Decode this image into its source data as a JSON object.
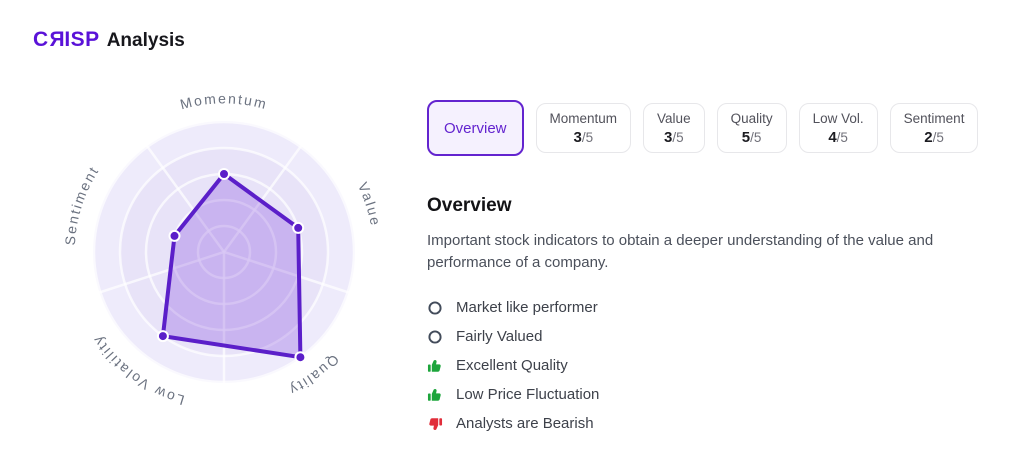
{
  "header": {
    "logo_c": "C",
    "logo_r": "R",
    "logo_rest": "ISP",
    "title": "Analysis"
  },
  "tabs": [
    {
      "id": "overview",
      "label": "Overview",
      "active": true
    },
    {
      "id": "momentum",
      "label": "Momentum",
      "score": "3",
      "max": "/5"
    },
    {
      "id": "value",
      "label": "Value",
      "score": "3",
      "max": "/5"
    },
    {
      "id": "quality",
      "label": "Quality",
      "score": "5",
      "max": "/5"
    },
    {
      "id": "low-vol",
      "label": "Low Vol.",
      "score": "4",
      "max": "/5"
    },
    {
      "id": "sentiment",
      "label": "Sentiment",
      "score": "2",
      "max": "/5"
    }
  ],
  "section": {
    "title": "Overview",
    "description": "Important stock indicators to obtain a deeper understanding of the value and performance of a company."
  },
  "indicators": [
    {
      "icon": "circle-outline-icon",
      "label": "Market like performer"
    },
    {
      "icon": "circle-outline-icon",
      "label": "Fairly Valued"
    },
    {
      "icon": "thumbs-up-icon",
      "label": "Excellent Quality"
    },
    {
      "icon": "thumbs-up-icon",
      "label": "Low Price Fluctuation"
    },
    {
      "icon": "thumbs-down-icon",
      "label": "Analysts are Bearish"
    }
  ],
  "colors": {
    "logo_purple": "#5a12d8",
    "accent_purple": "#6324cf",
    "chart_bg_outer": "#eeebfb",
    "chart_bg_inner": "#e8e3f8",
    "chart_grid": "rgba(255,255,255,0.7)",
    "chart_label": "#6b7280",
    "series_stroke": "#5b1fc9",
    "series_fill": "rgba(109,40,217,0.25)",
    "thumb_up_green": "#1da53c",
    "thumb_down_red": "#e12d3a",
    "circle_icon": "#424b5a"
  },
  "chart_data": {
    "type": "radar",
    "title": "",
    "categories": [
      "Momentum",
      "Value",
      "Quality",
      "Low Volatility",
      "Sentiment"
    ],
    "values": [
      3,
      3,
      5,
      4,
      2
    ],
    "max": 5,
    "rings": 5,
    "grid_rotation_deg": 36,
    "legend": "none",
    "axis_labels_curved": true
  }
}
